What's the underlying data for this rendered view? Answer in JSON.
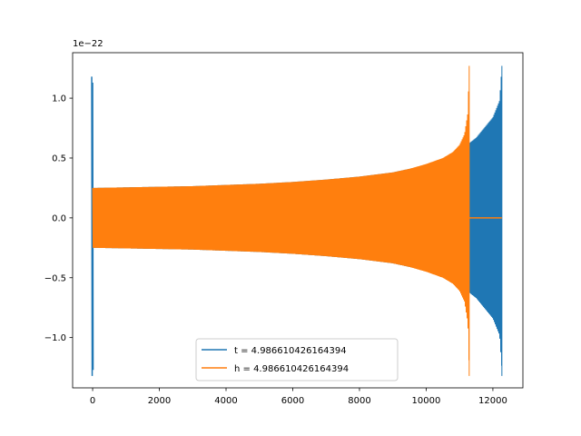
{
  "chart_data": {
    "type": "line",
    "title": "",
    "xlabel": "",
    "ylabel": "",
    "offset_text": "1e−22",
    "xlim": [
      -600,
      12900
    ],
    "ylim": [
      -1.42,
      1.38
    ],
    "x_ticks": [
      0,
      2000,
      4000,
      6000,
      8000,
      10000,
      12000
    ],
    "x_tick_labels": [
      "0",
      "2000",
      "4000",
      "6000",
      "8000",
      "10000",
      "12000"
    ],
    "y_ticks": [
      -1.0,
      -0.5,
      0.0,
      0.5,
      1.0
    ],
    "y_tick_labels": [
      "−1.0",
      "−0.5",
      "0.0",
      "0.5",
      "1.0"
    ],
    "grid": false,
    "legend_position": "lower center",
    "series": [
      {
        "name": "t = 4.986610426164394",
        "color": "#1f77b4",
        "envelope": [
          [
            0,
            0.25
          ],
          [
            1000,
            0.255
          ],
          [
            2000,
            0.26
          ],
          [
            3000,
            0.265
          ],
          [
            4000,
            0.275
          ],
          [
            5000,
            0.285
          ],
          [
            6000,
            0.3
          ],
          [
            7000,
            0.32
          ],
          [
            8000,
            0.345
          ],
          [
            9000,
            0.38
          ],
          [
            10000,
            0.44
          ],
          [
            10500,
            0.49
          ],
          [
            11000,
            0.56
          ],
          [
            11500,
            0.67
          ],
          [
            12000,
            0.84
          ],
          [
            12200,
            0.98
          ],
          [
            12270,
            1.27
          ]
        ],
        "spike_start": {
          "x": 0,
          "max": 1.18,
          "min": -1.32
        },
        "end_x": 12270
      },
      {
        "name": "h = 4.986610426164394",
        "color": "#ff7f0e",
        "envelope": [
          [
            0,
            0.25
          ],
          [
            1000,
            0.255
          ],
          [
            2000,
            0.26
          ],
          [
            3000,
            0.265
          ],
          [
            4000,
            0.275
          ],
          [
            5000,
            0.285
          ],
          [
            6000,
            0.3
          ],
          [
            7000,
            0.32
          ],
          [
            8000,
            0.345
          ],
          [
            9000,
            0.38
          ],
          [
            9500,
            0.41
          ],
          [
            10000,
            0.45
          ],
          [
            10500,
            0.5
          ],
          [
            10800,
            0.55
          ],
          [
            11000,
            0.61
          ],
          [
            11150,
            0.7
          ],
          [
            11250,
            0.88
          ],
          [
            11290,
            1.27
          ]
        ],
        "end_x": 11290,
        "flat_until": 12270
      }
    ]
  }
}
